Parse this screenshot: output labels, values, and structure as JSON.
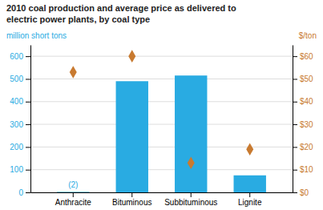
{
  "chart_data": {
    "type": "bar",
    "title": "2010 coal production and average price as delivered to\nelectric power plants, by coal type",
    "ylabel": "million short tons",
    "y2label": "$/ton",
    "categories": [
      "Anthracite",
      "Bituminous",
      "Subbituminous",
      "Lignite"
    ],
    "series": [
      {
        "type": "bar",
        "color": "#29ABE2",
        "values": [
          2,
          490,
          515,
          75
        ]
      },
      {
        "type": "scatter",
        "marker": "diamond",
        "color": "#C87A30",
        "axis": "y2",
        "values": [
          53,
          60,
          13,
          19
        ]
      }
    ],
    "annotations": [
      {
        "text": "(2)",
        "category": "Anthracite"
      }
    ],
    "ylim": [
      0,
      650
    ],
    "yticks": [
      0,
      100,
      200,
      300,
      400,
      500,
      600
    ],
    "y2lim": [
      0,
      65
    ],
    "y2ticks": [
      {
        "value": 0,
        "label": "$0"
      },
      {
        "value": 10,
        "label": "$10"
      },
      {
        "value": 20,
        "label": "$20"
      },
      {
        "value": 30,
        "label": "$30"
      },
      {
        "value": 40,
        "label": "$40"
      },
      {
        "value": 50,
        "label": "$50"
      },
      {
        "value": 60,
        "label": "$60"
      }
    ],
    "grid": true
  }
}
